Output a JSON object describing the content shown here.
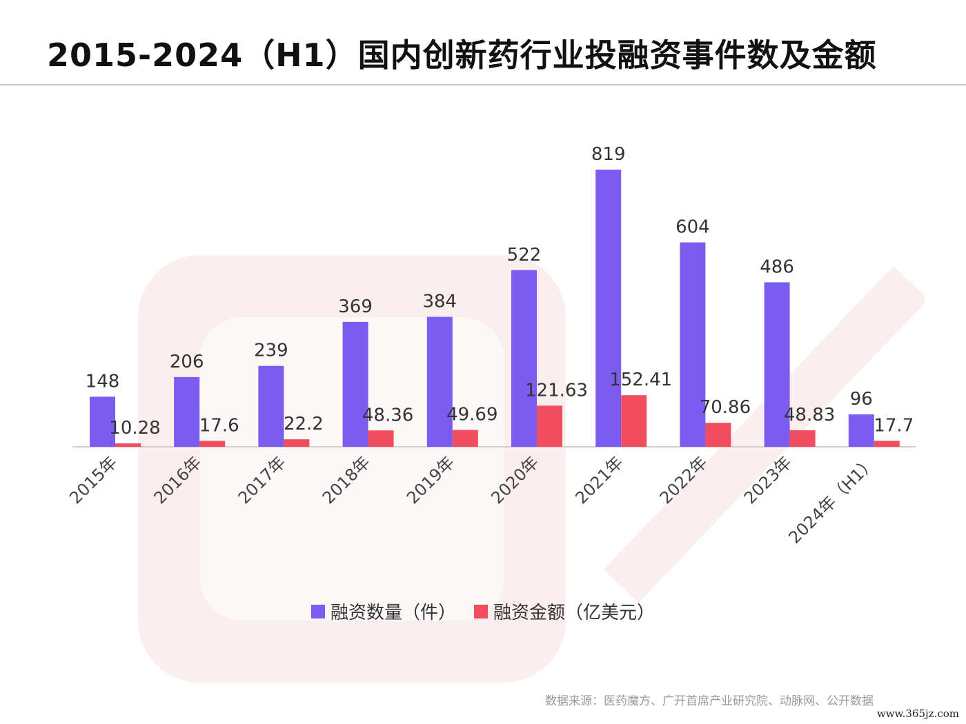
{
  "title": "2015-2024（H1）国内创新药行业投融资事件数及金额",
  "colors": {
    "count": "#7b5cf0",
    "amount": "#f24d5e",
    "watermark": "#f9e6e6"
  },
  "chart_data": {
    "type": "bar",
    "categories": [
      "2015年",
      "2016年",
      "2017年",
      "2018年",
      "2019年",
      "2020年",
      "2021年",
      "2022年",
      "2023年",
      "2024年（H1）"
    ],
    "series": [
      {
        "name": "融资数量（件）",
        "values": [
          148,
          206,
          239,
          369,
          384,
          522,
          819,
          604,
          486,
          96
        ]
      },
      {
        "name": "融资金额（亿美元）",
        "values": [
          10.28,
          17.6,
          22.2,
          48.36,
          49.69,
          121.63,
          152.41,
          70.86,
          48.83,
          17.7
        ]
      }
    ],
    "value_labels": [
      [
        "148",
        "206",
        "239",
        "369",
        "384",
        "522",
        "819",
        "604",
        "486",
        "96"
      ],
      [
        "10.28",
        "17.6",
        "22.2",
        "48.36",
        "49.69",
        "121.63",
        "152.41",
        "70.86",
        "48.83",
        "17.7"
      ]
    ],
    "ylim": [
      0,
      850
    ],
    "grid": false,
    "legend": "bottom-center"
  },
  "legend": {
    "count_label": "融资数量（件）",
    "amount_label": "融资金额（亿美元）"
  },
  "source": "数据来源：医药魔方、广开首席产业研究院、动脉网、公开数据",
  "site": "www.365jz.com"
}
